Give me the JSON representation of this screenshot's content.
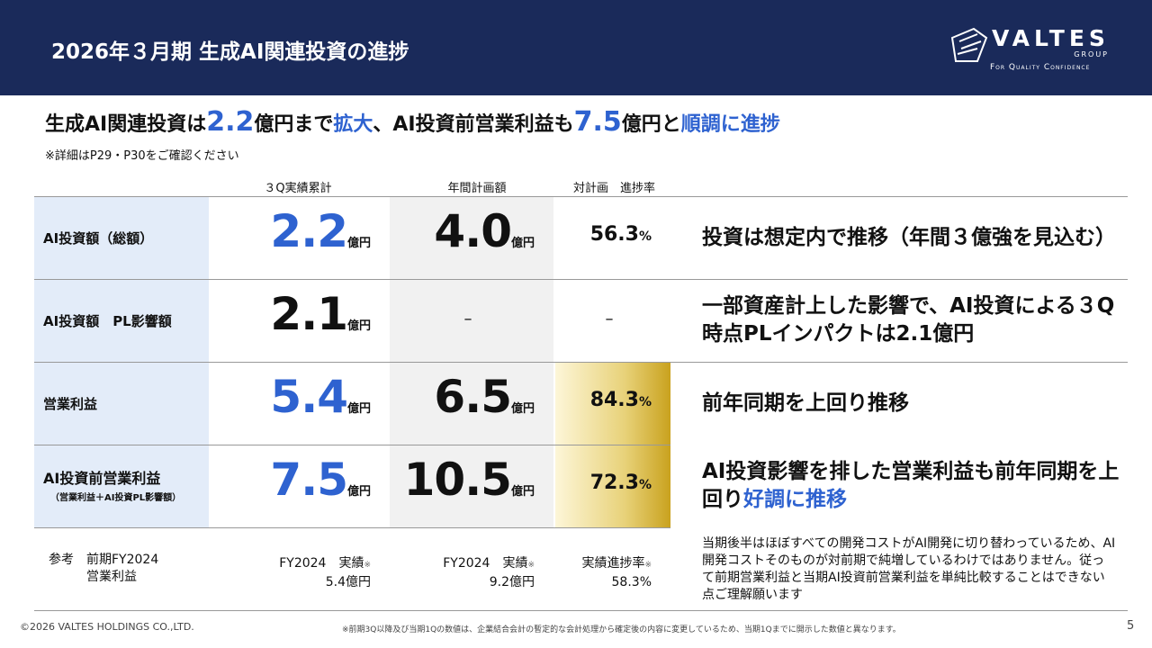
{
  "header": {
    "title": "2026年３月期 生成AI関連投資の進捗",
    "logo": {
      "name": "VALTES",
      "group": "GROUP",
      "tagline": "For Quality Confidence"
    }
  },
  "headline": {
    "segments": [
      {
        "text": "生成AI関連投資は"
      },
      {
        "text": "2.2",
        "color": "#2e62d0",
        "emphasis": "number"
      },
      {
        "text": "億円まで"
      },
      {
        "text": "拡大",
        "color": "#2e62d0"
      },
      {
        "text": "、AI投資前営業利益も"
      },
      {
        "text": "7.5",
        "color": "#2e62d0",
        "emphasis": "number"
      },
      {
        "text": "億円と"
      },
      {
        "text": "順調に進捗",
        "color": "#2e62d0"
      }
    ],
    "note": "※詳細はP29・P30をご確認ください"
  },
  "table": {
    "columns": [
      "３Q実績累計",
      "年間計画額",
      "対計画　進捗率"
    ],
    "rows": [
      {
        "label": "AI投資額（総額）",
        "actual": {
          "value": "2.2",
          "unit": "億円",
          "color": "#2e62d0"
        },
        "plan": {
          "value": "4.0",
          "unit": "億円"
        },
        "rate": {
          "value": "56.3",
          "unit": "%",
          "highlight": false
        },
        "comment": {
          "segments": [
            {
              "text": "投資は想定内で推移（年間３億強を見込む）"
            }
          ]
        }
      },
      {
        "label": "AI投資額　PL影響額",
        "actual": {
          "value": "2.1",
          "unit": "億円",
          "color": "#111111"
        },
        "plan": {
          "value": "–"
        },
        "rate": {
          "value": "–",
          "highlight": false
        },
        "comment": {
          "segments": [
            {
              "text": "一部資産計上した影響で、AI投資による３Q時点PLインパクトは2.1億円"
            }
          ]
        }
      },
      {
        "label": "営業利益",
        "actual": {
          "value": "5.4",
          "unit": "億円",
          "color": "#2e62d0"
        },
        "plan": {
          "value": "6.5",
          "unit": "億円"
        },
        "rate": {
          "value": "84.3",
          "unit": "%",
          "highlight": true
        },
        "comment": {
          "segments": [
            {
              "text": "前年同期を上回り推移"
            }
          ]
        }
      },
      {
        "label": "AI投資前営業利益",
        "sublabel": "（営業利益＋AI投資PL影響額）",
        "actual": {
          "value": "7.5",
          "unit": "億円",
          "color": "#2e62d0"
        },
        "plan": {
          "value": "10.5",
          "unit": "億円"
        },
        "rate": {
          "value": "72.3",
          "unit": "%",
          "highlight": true
        },
        "comment": {
          "segments": [
            {
              "text": "AI投資影響を排した営業利益も前年同期を上回り"
            },
            {
              "text": "好調に推移",
              "color": "#2e62d0"
            }
          ]
        }
      }
    ],
    "reference": {
      "label": [
        "参考　前期FY2024",
        "営業利益"
      ],
      "cells": [
        {
          "title": "FY2024　実績",
          "mark": "※",
          "value": "5.4億円"
        },
        {
          "title": "FY2024　実績",
          "mark": "※",
          "value": "9.2億円"
        },
        {
          "title": "実績進捗率",
          "mark": "※",
          "value": "58.3%"
        }
      ],
      "comment": "当期後半はほぼすべての開発コストがAI開発に切り替わっているため、AI開発コストそのものが対前期で純増しているわけではありません。従って前期営業利益と当期AI投資前営業利益を単純比較することはできない点ご理解願います"
    }
  },
  "footer": {
    "copyright": "©2026 VALTES HOLDINGS CO.,LTD.",
    "note": "※前期3Q以降及び当期1Qの数値は、企業結合会計の暫定的な会計処理から確定後の内容に変更しているため、当期1Qまでに開示した数値と異なります。",
    "page": "5"
  }
}
